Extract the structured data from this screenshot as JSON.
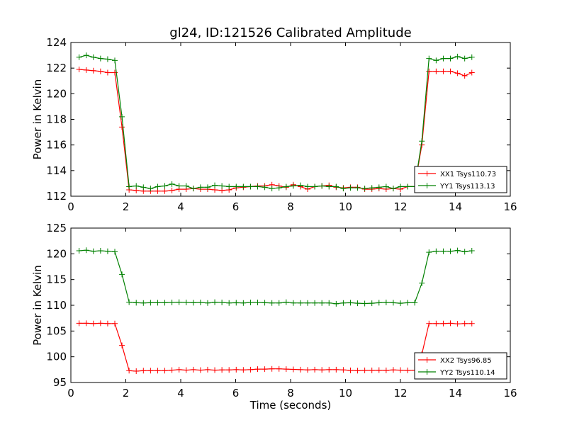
{
  "figure": {
    "title": "gl24, ID:121526 Calibrated Amplitude",
    "xlabel": "Time (seconds)"
  },
  "chart_data": [
    {
      "type": "line",
      "ylabel": "Power in Kelvin",
      "xlim": [
        0,
        16
      ],
      "ylim": [
        112,
        124
      ],
      "xticks": [
        "0",
        "2",
        "4",
        "6",
        "8",
        "10",
        "12",
        "14",
        "16"
      ],
      "yticks": [
        "112",
        "114",
        "116",
        "118",
        "120",
        "122",
        "124"
      ],
      "grid": false,
      "legend_position": "lower-right",
      "x": [
        0.3,
        0.56,
        0.82,
        1.08,
        1.34,
        1.6,
        1.86,
        2.12,
        2.38,
        2.64,
        2.9,
        3.16,
        3.42,
        3.68,
        3.94,
        4.2,
        4.46,
        4.72,
        4.98,
        5.24,
        5.5,
        5.76,
        6.02,
        6.28,
        6.54,
        6.8,
        7.06,
        7.32,
        7.58,
        7.84,
        8.1,
        8.36,
        8.62,
        8.88,
        9.14,
        9.4,
        9.66,
        9.92,
        10.18,
        10.44,
        10.7,
        10.96,
        11.22,
        11.48,
        11.74,
        12.0,
        12.26,
        12.52,
        12.78,
        13.04,
        13.3,
        13.56,
        13.82,
        14.08,
        14.34,
        14.6
      ],
      "series": [
        {
          "name": "XX1 Tsys110.73",
          "color": "#ff0000",
          "values": [
            121.9,
            121.85,
            121.8,
            121.75,
            121.65,
            121.65,
            117.4,
            112.5,
            112.45,
            112.4,
            112.4,
            112.4,
            112.4,
            112.45,
            112.55,
            112.55,
            112.6,
            112.55,
            112.55,
            112.5,
            112.45,
            112.5,
            112.65,
            112.7,
            112.75,
            112.8,
            112.8,
            112.9,
            112.8,
            112.7,
            112.9,
            112.75,
            112.55,
            112.75,
            112.8,
            112.85,
            112.7,
            112.65,
            112.7,
            112.7,
            112.55,
            112.55,
            112.6,
            112.55,
            112.6,
            112.55,
            112.75,
            112.75,
            116.0,
            121.75,
            121.75,
            121.75,
            121.75,
            121.6,
            121.4,
            121.65
          ]
        },
        {
          "name": "YY1 Tsys113.13",
          "color": "#008000",
          "values": [
            122.85,
            123.0,
            122.85,
            122.75,
            122.7,
            122.6,
            118.2,
            112.75,
            112.8,
            112.7,
            112.6,
            112.75,
            112.8,
            112.95,
            112.8,
            112.8,
            112.6,
            112.7,
            112.7,
            112.85,
            112.8,
            112.75,
            112.75,
            112.75,
            112.75,
            112.75,
            112.7,
            112.6,
            112.65,
            112.75,
            112.8,
            112.85,
            112.75,
            112.75,
            112.8,
            112.75,
            112.75,
            112.6,
            112.65,
            112.65,
            112.6,
            112.65,
            112.7,
            112.75,
            112.6,
            112.75,
            112.75,
            112.75,
            116.3,
            122.75,
            122.6,
            122.75,
            122.75,
            122.9,
            122.75,
            122.85
          ]
        }
      ]
    },
    {
      "type": "line",
      "ylabel": "Power in Kelvin",
      "xlabel": "Time (seconds)",
      "xlim": [
        0,
        16
      ],
      "ylim": [
        95,
        125
      ],
      "xticks": [
        "0",
        "2",
        "4",
        "6",
        "8",
        "10",
        "12",
        "14",
        "16"
      ],
      "yticks": [
        "95",
        "100",
        "105",
        "110",
        "115",
        "120",
        "125"
      ],
      "grid": false,
      "legend_position": "lower-right",
      "x": [
        0.3,
        0.56,
        0.82,
        1.08,
        1.34,
        1.6,
        1.86,
        2.12,
        2.38,
        2.64,
        2.9,
        3.16,
        3.42,
        3.68,
        3.94,
        4.2,
        4.46,
        4.72,
        4.98,
        5.24,
        5.5,
        5.76,
        6.02,
        6.28,
        6.54,
        6.8,
        7.06,
        7.32,
        7.58,
        7.84,
        8.1,
        8.36,
        8.62,
        8.88,
        9.14,
        9.4,
        9.66,
        9.92,
        10.18,
        10.44,
        10.7,
        10.96,
        11.22,
        11.48,
        11.74,
        12.0,
        12.26,
        12.52,
        12.78,
        13.04,
        13.3,
        13.56,
        13.82,
        14.08,
        14.34,
        14.6
      ],
      "series": [
        {
          "name": "XX2 Tsys96.85",
          "color": "#ff0000",
          "values": [
            106.5,
            106.5,
            106.45,
            106.5,
            106.45,
            106.45,
            102.2,
            97.3,
            97.2,
            97.3,
            97.3,
            97.3,
            97.3,
            97.4,
            97.5,
            97.4,
            97.5,
            97.4,
            97.5,
            97.4,
            97.45,
            97.45,
            97.5,
            97.45,
            97.5,
            97.6,
            97.6,
            97.65,
            97.65,
            97.6,
            97.55,
            97.5,
            97.45,
            97.5,
            97.45,
            97.5,
            97.5,
            97.45,
            97.35,
            97.3,
            97.35,
            97.35,
            97.4,
            97.35,
            97.45,
            97.4,
            97.35,
            97.4,
            100.5,
            106.45,
            106.45,
            106.45,
            106.5,
            106.4,
            106.45,
            106.45
          ]
        },
        {
          "name": "YY2 Tsys110.14",
          "color": "#008000",
          "values": [
            120.6,
            120.7,
            120.5,
            120.6,
            120.5,
            120.4,
            116.0,
            110.6,
            110.5,
            110.45,
            110.5,
            110.5,
            110.5,
            110.55,
            110.6,
            110.55,
            110.5,
            110.55,
            110.45,
            110.6,
            110.55,
            110.45,
            110.5,
            110.45,
            110.55,
            110.55,
            110.5,
            110.45,
            110.45,
            110.6,
            110.45,
            110.45,
            110.45,
            110.45,
            110.45,
            110.45,
            110.3,
            110.45,
            110.5,
            110.4,
            110.35,
            110.4,
            110.5,
            110.55,
            110.5,
            110.4,
            110.5,
            110.5,
            114.3,
            120.3,
            120.5,
            120.5,
            120.5,
            120.65,
            120.4,
            120.6
          ]
        }
      ]
    }
  ]
}
